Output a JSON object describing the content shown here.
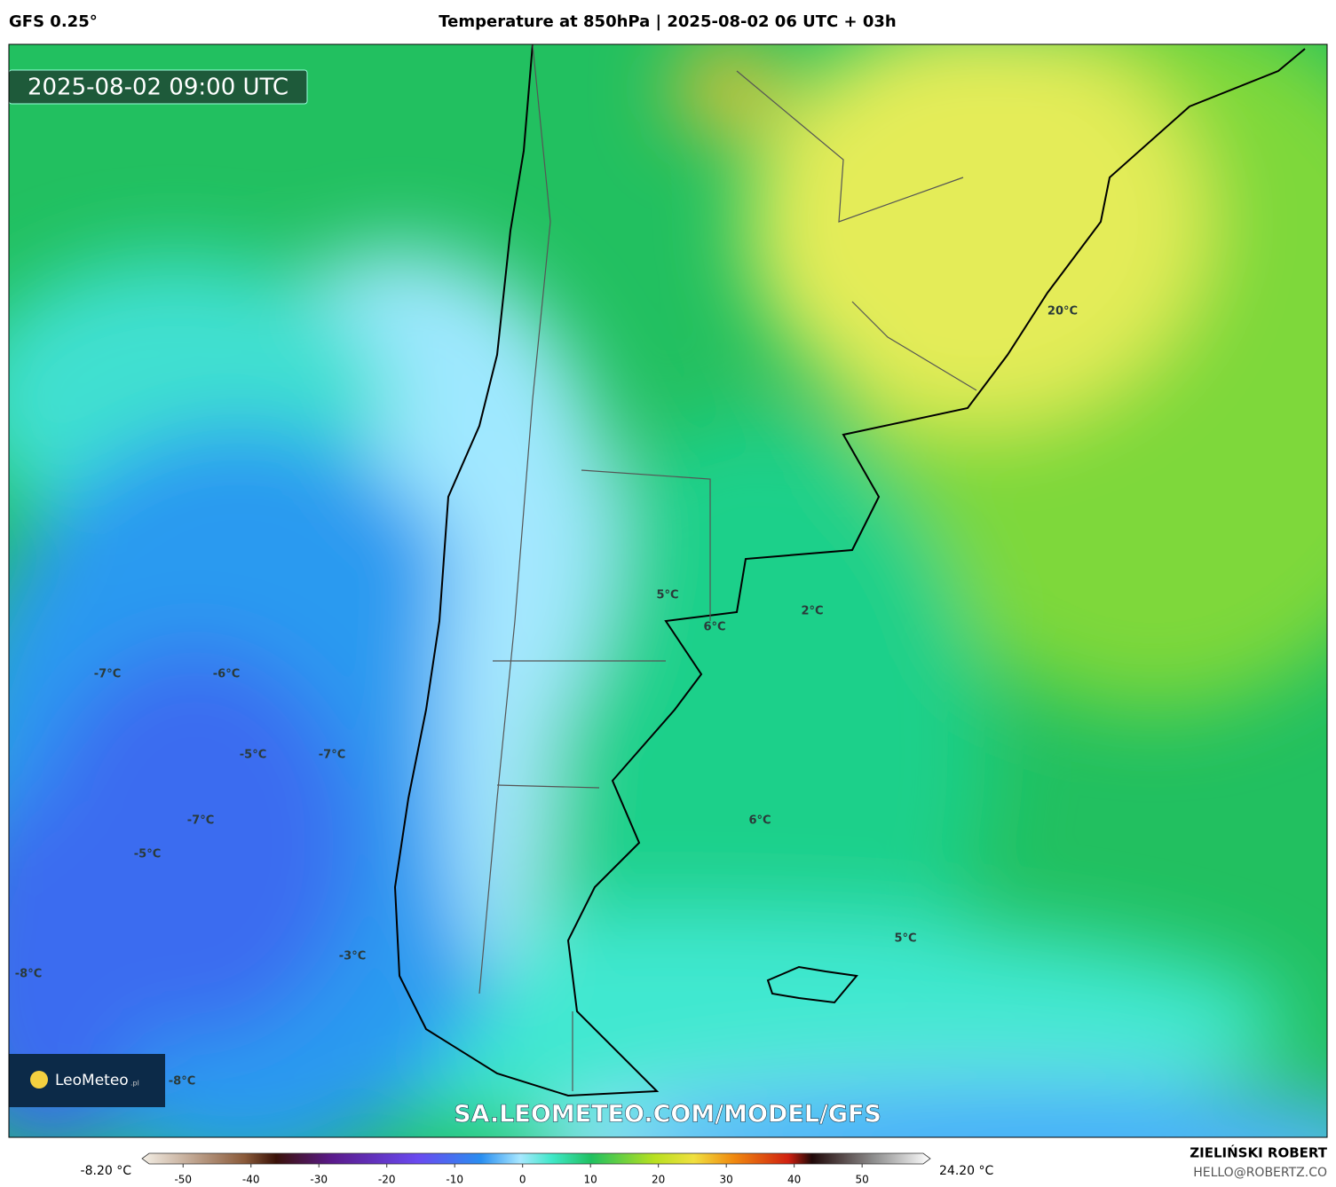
{
  "header": {
    "model": "GFS 0.25°",
    "title": "Temperature at 850hPa | 2025-08-02 06 UTC + 03h"
  },
  "map": {
    "valid_time": "2025-08-02 09:00 UTC",
    "watermark": "SA.LEOMETEO.COM/MODEL/GFS",
    "logo": {
      "name": "LeoMeteo",
      "suffix": ".pl"
    },
    "labels": [
      "20°C",
      "5°C",
      "2°C",
      "6°C",
      "-7°C",
      "-6°C",
      "-5°C",
      "-7°C",
      "-7°C",
      "6°C",
      "-5°C",
      "5°C",
      "-3°C",
      "-8°C",
      "-8°C"
    ]
  },
  "colorbar": {
    "min_label": "-8.20 °C",
    "max_label": "24.20 °C",
    "range": [
      -55,
      59
    ],
    "ticks": [
      -50,
      -40,
      -30,
      -20,
      -10,
      0,
      10,
      20,
      30,
      40,
      50
    ]
  },
  "footer": {
    "author": "ZIELIŃSKI ROBERT",
    "contact": "HELLO@ROBERTZ.CO"
  }
}
